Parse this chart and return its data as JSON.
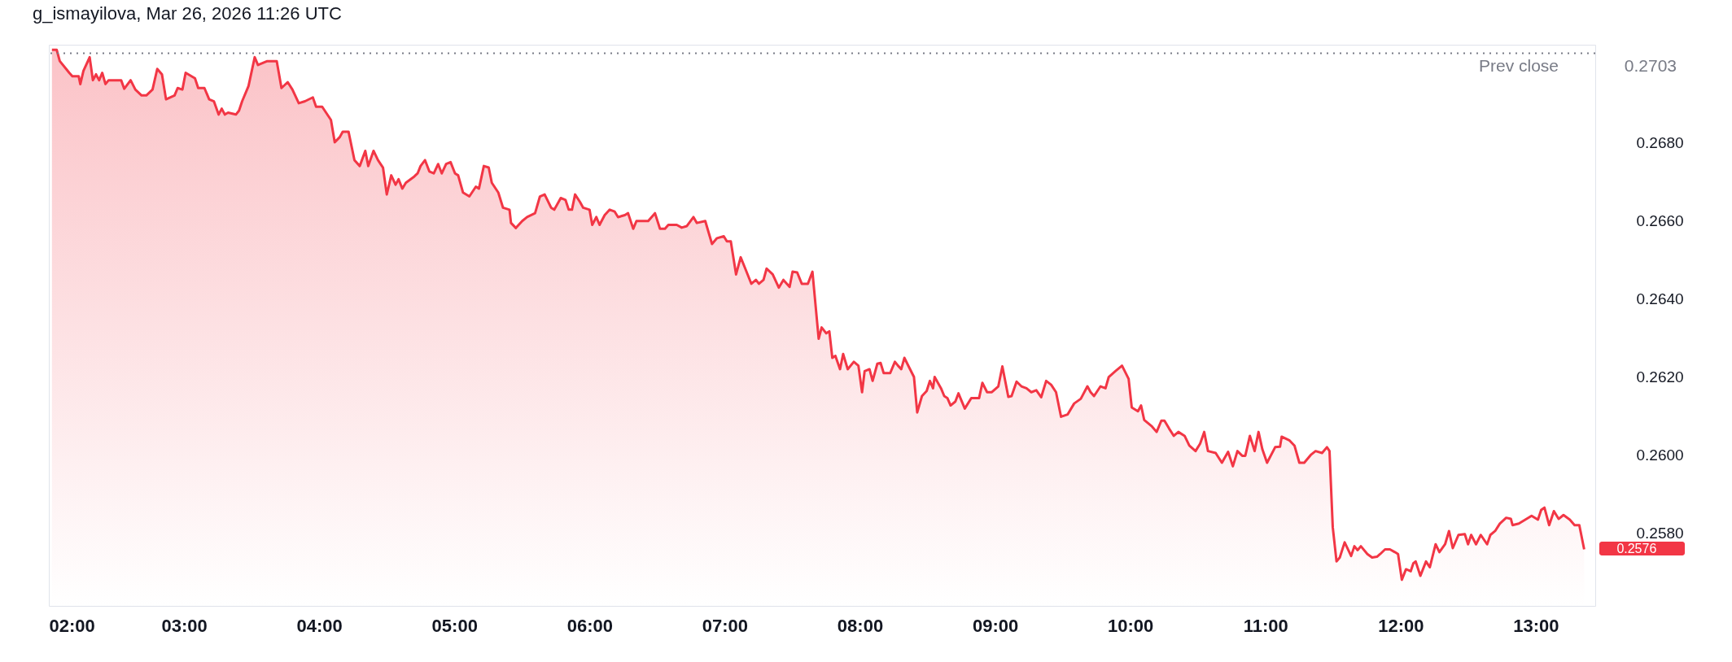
{
  "chart_data": {
    "type": "area",
    "title": "g_ismayilova, Mar 26, 2026 11:26 UTC",
    "x": [
      2.023,
      2.058,
      2.081,
      2.128,
      2.151,
      2.174,
      2.221,
      2.233,
      2.256,
      2.302,
      2.326,
      2.349,
      2.372,
      2.395,
      2.419,
      2.442,
      2.488,
      2.535,
      2.558,
      2.605,
      2.64,
      2.686,
      2.721,
      2.767,
      2.802,
      2.837,
      2.867,
      2.93,
      2.953,
      2.988,
      3.012,
      3.081,
      3.105,
      3.151,
      3.186,
      3.221,
      3.256,
      3.279,
      3.302,
      3.326,
      3.384,
      3.407,
      3.43,
      3.477,
      3.523,
      3.547,
      3.616,
      3.686,
      3.721,
      3.767,
      3.802,
      3.849,
      3.895,
      3.953,
      3.977,
      4.022,
      4.087,
      4.115,
      4.152,
      4.174,
      4.217,
      4.261,
      4.3,
      4.341,
      4.363,
      4.402,
      4.435,
      4.472,
      4.5,
      4.533,
      4.565,
      4.587,
      4.615,
      4.641,
      4.696,
      4.728,
      4.75,
      4.783,
      4.815,
      4.848,
      4.88,
      4.907,
      4.939,
      4.972,
      5.005,
      5.028,
      5.064,
      5.111,
      5.159,
      5.182,
      5.218,
      5.254,
      5.277,
      5.325,
      5.36,
      5.408,
      5.419,
      5.455,
      5.502,
      5.538,
      5.597,
      5.633,
      5.668,
      5.716,
      5.739,
      5.787,
      5.822,
      5.846,
      5.87,
      5.893,
      5.929,
      5.953,
      6.0,
      6.02,
      6.05,
      6.074,
      6.112,
      6.149,
      6.186,
      6.211,
      6.261,
      6.285,
      6.323,
      6.347,
      6.434,
      6.484,
      6.521,
      6.558,
      6.583,
      6.645,
      6.682,
      6.72,
      6.769,
      6.794,
      6.856,
      6.906,
      6.943,
      6.993,
      7.016,
      7.045,
      7.084,
      7.118,
      7.152,
      7.197,
      7.231,
      7.253,
      7.287,
      7.31,
      7.355,
      7.4,
      7.434,
      7.48,
      7.502,
      7.536,
      7.57,
      7.615,
      7.649,
      7.695,
      7.717,
      7.751,
      7.774,
      7.796,
      7.819,
      7.853,
      7.876,
      7.91,
      7.955,
      7.989,
      8.016,
      8.035,
      8.071,
      8.094,
      8.129,
      8.153,
      8.176,
      8.224,
      8.259,
      8.282,
      8.306,
      8.329,
      8.365,
      8.4,
      8.424,
      8.459,
      8.494,
      8.518,
      8.541,
      8.553,
      8.6,
      8.624,
      8.647,
      8.671,
      8.706,
      8.729,
      8.776,
      8.824,
      8.882,
      8.906,
      8.941,
      8.976,
      9.024,
      9.054,
      9.098,
      9.122,
      9.159,
      9.195,
      9.232,
      9.268,
      9.305,
      9.341,
      9.378,
      9.415,
      9.451,
      9.488,
      9.537,
      9.585,
      9.634,
      9.683,
      9.707,
      9.732,
      9.78,
      9.817,
      9.841,
      9.89,
      9.939,
      9.988,
      10.011,
      10.057,
      10.08,
      10.103,
      10.161,
      10.195,
      10.23,
      10.253,
      10.287,
      10.322,
      10.356,
      10.402,
      10.437,
      10.483,
      10.517,
      10.547,
      10.575,
      10.632,
      10.678,
      10.724,
      10.759,
      10.793,
      10.828,
      10.851,
      10.885,
      10.92,
      10.949,
      10.977,
      11.012,
      11.072,
      11.108,
      11.12,
      11.179,
      11.215,
      11.251,
      11.287,
      11.335,
      11.371,
      11.419,
      11.455,
      11.474,
      11.498,
      11.526,
      11.55,
      11.586,
      11.634,
      11.658,
      11.682,
      11.706,
      11.754,
      11.789,
      11.825,
      11.849,
      11.885,
      11.921,
      11.957,
      11.981,
      12.009,
      12.04,
      12.075,
      12.094,
      12.111,
      12.146,
      12.188,
      12.216,
      12.259,
      12.287,
      12.329,
      12.358,
      12.386,
      12.428,
      12.475,
      12.499,
      12.522,
      12.558,
      12.593,
      12.64,
      12.664,
      12.699,
      12.734,
      12.781,
      12.816,
      12.828,
      12.875,
      12.922,
      12.969,
      13.016,
      13.04,
      13.064,
      13.099,
      13.134,
      13.169,
      13.205,
      13.252,
      13.287,
      13.322,
      13.358
    ],
    "series": [
      {
        "color": "#f23645",
        "values": [
          0.27039,
          0.27039,
          0.2701,
          0.2699,
          0.2698,
          0.26971,
          0.26971,
          0.26951,
          0.26985,
          0.2702,
          0.26961,
          0.26976,
          0.26961,
          0.2698,
          0.26951,
          0.26961,
          0.26961,
          0.26961,
          0.26939,
          0.26961,
          0.26937,
          0.26922,
          0.26922,
          0.26937,
          0.2699,
          0.26976,
          0.26912,
          0.26922,
          0.26941,
          0.26937,
          0.2698,
          0.26966,
          0.26941,
          0.26941,
          0.26912,
          0.26907,
          0.26873,
          0.26888,
          0.26873,
          0.26878,
          0.26873,
          0.26883,
          0.26907,
          0.26946,
          0.2702,
          0.27,
          0.2701,
          0.2701,
          0.26941,
          0.26956,
          0.26937,
          0.26902,
          0.26907,
          0.26917,
          0.26893,
          0.26893,
          0.26859,
          0.26802,
          0.26815,
          0.26829,
          0.26829,
          0.26756,
          0.26741,
          0.2678,
          0.26741,
          0.2678,
          0.26756,
          0.26737,
          0.26668,
          0.26717,
          0.26693,
          0.26707,
          0.26683,
          0.26698,
          0.26712,
          0.26722,
          0.26741,
          0.26756,
          0.26727,
          0.26722,
          0.26746,
          0.26722,
          0.26746,
          0.26751,
          0.26722,
          0.26717,
          0.26673,
          0.26663,
          0.26688,
          0.26683,
          0.26741,
          0.26737,
          0.26698,
          0.26673,
          0.26634,
          0.26629,
          0.26595,
          0.26582,
          0.266,
          0.2661,
          0.2662,
          0.26663,
          0.26668,
          0.26634,
          0.26629,
          0.26659,
          0.26654,
          0.26629,
          0.26629,
          0.26668,
          0.26649,
          0.26634,
          0.26629,
          0.2659,
          0.2661,
          0.2659,
          0.26615,
          0.26629,
          0.26624,
          0.2661,
          0.26615,
          0.2662,
          0.2658,
          0.266,
          0.266,
          0.2662,
          0.2658,
          0.2658,
          0.2659,
          0.2659,
          0.26583,
          0.26587,
          0.2661,
          0.26595,
          0.266,
          0.26541,
          0.26556,
          0.26561,
          0.26548,
          0.26548,
          0.26463,
          0.26507,
          0.26478,
          0.26439,
          0.26449,
          0.26439,
          0.26449,
          0.26478,
          0.26463,
          0.26429,
          0.26449,
          0.26431,
          0.2647,
          0.26468,
          0.26439,
          0.26439,
          0.2647,
          0.26298,
          0.26327,
          0.26312,
          0.26317,
          0.26249,
          0.26254,
          0.2622,
          0.26259,
          0.2622,
          0.26239,
          0.26229,
          0.26161,
          0.26215,
          0.2622,
          0.2619,
          0.26234,
          0.26236,
          0.2621,
          0.2621,
          0.26239,
          0.26229,
          0.2622,
          0.26249,
          0.26224,
          0.262,
          0.26109,
          0.26151,
          0.26164,
          0.2619,
          0.26171,
          0.262,
          0.26171,
          0.26151,
          0.26146,
          0.26127,
          0.26137,
          0.26158,
          0.26119,
          0.26146,
          0.26146,
          0.26185,
          0.26161,
          0.26161,
          0.26176,
          0.26227,
          0.26149,
          0.26151,
          0.26188,
          0.26176,
          0.26171,
          0.26161,
          0.26166,
          0.26148,
          0.2619,
          0.2618,
          0.26161,
          0.26098,
          0.26104,
          0.26132,
          0.26144,
          0.26176,
          0.26161,
          0.26151,
          0.26176,
          0.26171,
          0.262,
          0.26215,
          0.26229,
          0.26195,
          0.26122,
          0.26112,
          0.26127,
          0.2609,
          0.26073,
          0.26059,
          0.26088,
          0.26088,
          0.26068,
          0.26049,
          0.26059,
          0.26049,
          0.26024,
          0.2601,
          0.26029,
          0.26059,
          0.2601,
          0.26005,
          0.2598,
          0.26008,
          0.25971,
          0.2601,
          0.25998,
          0.25998,
          0.26049,
          0.2601,
          0.26059,
          0.26015,
          0.2598,
          0.2602,
          0.26021,
          0.26047,
          0.26037,
          0.26024,
          0.2598,
          0.2598,
          0.26,
          0.2601,
          0.26005,
          0.2602,
          0.2601,
          0.25815,
          0.25727,
          0.25737,
          0.25776,
          0.25741,
          0.25766,
          0.25756,
          0.25766,
          0.25746,
          0.25737,
          0.25739,
          0.25746,
          0.25758,
          0.25758,
          0.25751,
          0.25746,
          0.2568,
          0.25707,
          0.25702,
          0.25722,
          0.25727,
          0.2569,
          0.25727,
          0.25712,
          0.25771,
          0.25751,
          0.25771,
          0.25805,
          0.25761,
          0.25795,
          0.25797,
          0.25771,
          0.25795,
          0.25771,
          0.25795,
          0.25771,
          0.25795,
          0.25805,
          0.25824,
          0.25839,
          0.25836,
          0.2582,
          0.25824,
          0.25834,
          0.25844,
          0.25834,
          0.25859,
          0.25865,
          0.2582,
          0.25856,
          0.25836,
          0.25846,
          0.25834,
          0.2582,
          0.2582,
          0.25758
        ]
      }
    ],
    "xlim": [
      2.0,
      13.44
    ],
    "ylim": [
      0.25613,
      0.27052
    ],
    "xticks": [
      {
        "value": 2,
        "label": "02:00"
      },
      {
        "value": 3,
        "label": "03:00"
      },
      {
        "value": 4,
        "label": "04:00"
      },
      {
        "value": 5,
        "label": "05:00"
      },
      {
        "value": 6,
        "label": "06:00"
      },
      {
        "value": 7,
        "label": "07:00"
      },
      {
        "value": 8,
        "label": "08:00"
      },
      {
        "value": 9,
        "label": "09:00"
      },
      {
        "value": 10,
        "label": "10:00"
      },
      {
        "value": 11,
        "label": "11:00"
      },
      {
        "value": 12,
        "label": "12:00"
      },
      {
        "value": 13,
        "label": "13:00"
      }
    ],
    "yticks": [
      {
        "value": 0.258,
        "label": "0.2580"
      },
      {
        "value": 0.26,
        "label": "0.2600"
      },
      {
        "value": 0.262,
        "label": "0.2620"
      },
      {
        "value": 0.264,
        "label": "0.2640"
      },
      {
        "value": 0.266,
        "label": "0.2660"
      },
      {
        "value": 0.268,
        "label": "0.2680"
      }
    ],
    "ref_lines": [
      {
        "axis": "y",
        "value": 0.2703,
        "label": "Prev close",
        "color": "#787b86",
        "line_style": "dotted"
      }
    ],
    "annotations": [
      "0.2703",
      {
        "text": "0.2576",
        "x": 13.358,
        "y": 0.2576
      }
    ],
    "grid": false
  }
}
